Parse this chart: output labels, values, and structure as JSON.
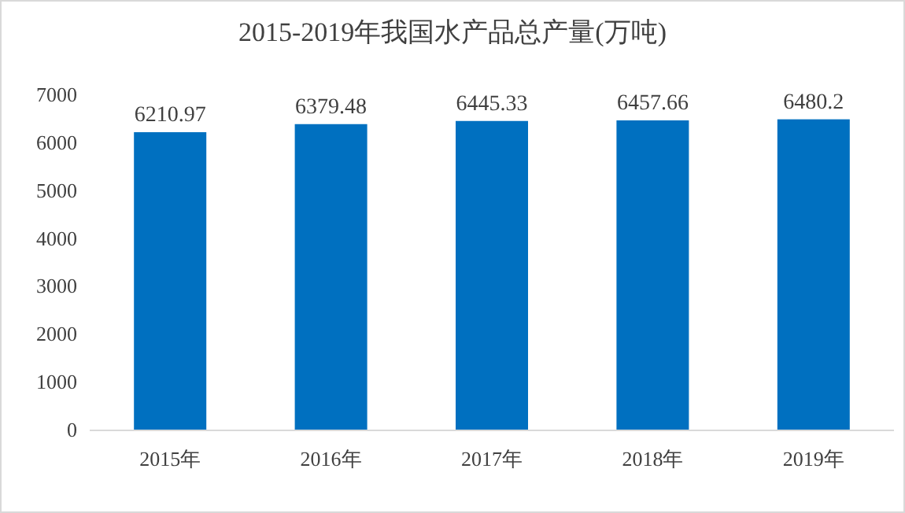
{
  "chart_data": {
    "type": "bar",
    "title": "2015-2019年我国水产品总产量(万吨)",
    "categories": [
      "2015年",
      "2016年",
      "2017年",
      "2018年",
      "2019年"
    ],
    "values": [
      6210.97,
      6379.48,
      6445.33,
      6457.66,
      6480.2
    ],
    "color": "#0070c0",
    "ylim": [
      0,
      7000
    ],
    "yticks": [
      0,
      1000,
      2000,
      3000,
      4000,
      5000,
      6000,
      7000
    ],
    "data_labels": true,
    "grid": false
  }
}
